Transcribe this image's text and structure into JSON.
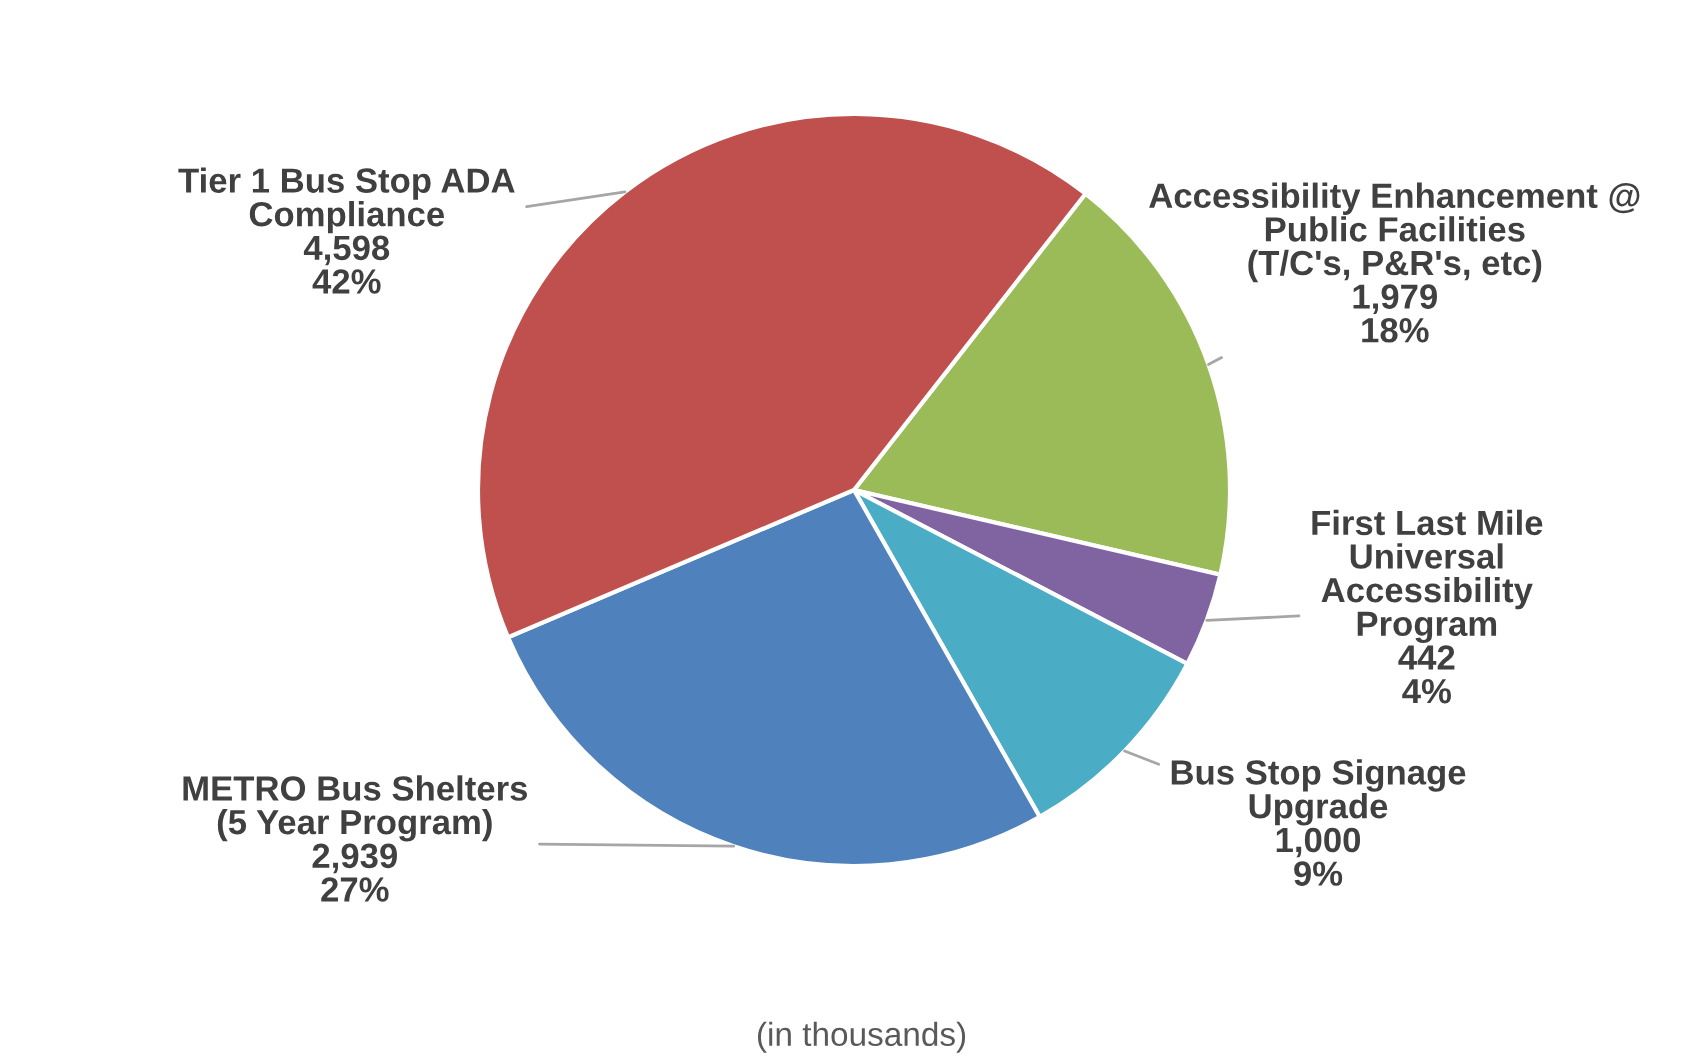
{
  "chart_data": {
    "type": "pie",
    "categories": [
      "Accessibility Enhancement @\nPublic Facilities\n(T/C's, P&R's, etc)",
      "First Last Mile\nUniversal\nAccessibility\nProgram",
      "Bus Stop Signage\nUpgrade",
      "METRO Bus Shelters\n(5 Year Program)",
      "Tier 1 Bus Stop ADA\nCompliance"
    ],
    "values": [
      1979,
      442,
      1000,
      2939,
      4598
    ],
    "colors": [
      "#9bbb59",
      "#8064a2",
      "#4bacc6",
      "#4f81bd",
      "#c0504d"
    ],
    "value_labels": [
      "1,979\n18%",
      "442\n4%",
      "1,000\n9%",
      "2,939\n27%",
      "4,598\n42%"
    ],
    "annotations": [
      "(in thousands)"
    ],
    "legend": false
  }
}
